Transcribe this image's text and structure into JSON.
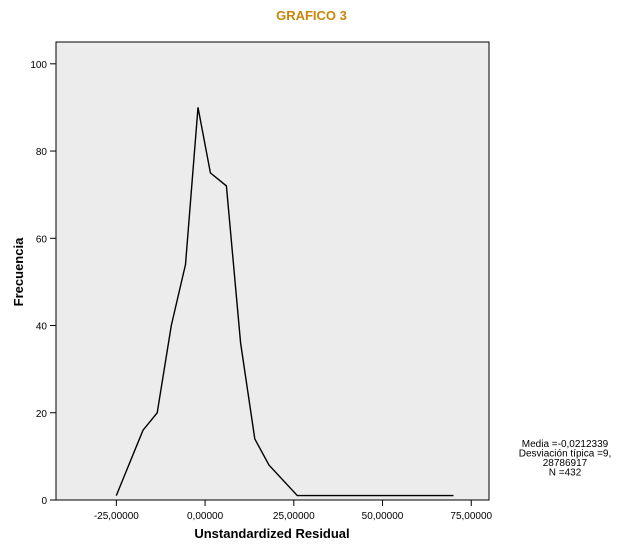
{
  "title": "GRAFICO 3",
  "chart_data": {
    "type": "line",
    "xlabel": "Unstandardized Residual",
    "ylabel": "Frecuencia",
    "xlim": [
      -42,
      80
    ],
    "ylim": [
      0,
      105
    ],
    "x_ticks": [
      -25,
      0,
      25,
      50,
      75
    ],
    "x_tick_labels": [
      "-25,00000",
      "0,00000",
      "25,00000",
      "50,00000",
      "75,00000"
    ],
    "y_ticks": [
      0,
      20,
      40,
      60,
      80,
      100
    ],
    "y_tick_labels": [
      "0",
      "20",
      "40",
      "60",
      "80",
      "100"
    ],
    "grid": false,
    "series": [
      {
        "x": [
          -25,
          -17.5,
          -13.5,
          -9.5,
          -5.5,
          -2,
          1.5,
          6,
          10,
          14,
          18,
          26,
          30,
          34,
          38,
          42,
          46,
          50,
          54,
          58,
          62,
          66,
          70
        ],
        "values": [
          1,
          16,
          20,
          40,
          54,
          90,
          75,
          72,
          36,
          14,
          8,
          1,
          1,
          1,
          1,
          1,
          1,
          1,
          1,
          1,
          1,
          1,
          1
        ]
      }
    ],
    "stats": [
      "Media =-0,0212339",
      "Desviación típica =9,",
      "28786917",
      "N =432"
    ]
  }
}
